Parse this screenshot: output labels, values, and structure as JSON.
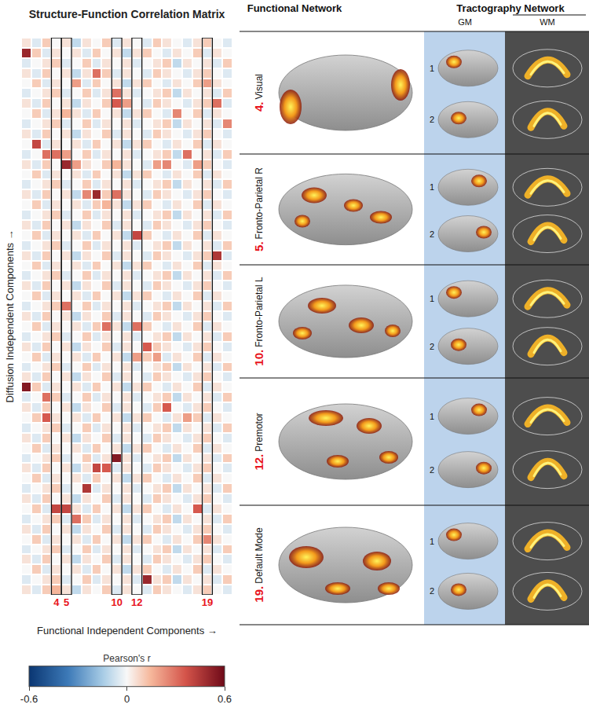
{
  "chart_data": {
    "type": "heatmap",
    "title": "Structure-Function Correlation Matrix",
    "x_label": "Functional Independent Components →",
    "y_label": "Diffusion Independent Components →",
    "tick_labels": "x",
    "categories": [
      null,
      null,
      null,
      "4",
      "5",
      null,
      null,
      null,
      null,
      "10",
      null,
      "12",
      null,
      null,
      null,
      null,
      null,
      null,
      "19",
      null,
      null
    ],
    "highlighted_columns": [
      "4",
      "5",
      "10",
      "12",
      "19"
    ],
    "colorbar": {
      "title": "Pearson's r",
      "range": [
        -0.6,
        0.6
      ],
      "ticks": [
        -0.6,
        0,
        0.6
      ]
    },
    "cells": [
      [
        0.05,
        -0.05,
        0.1,
        0,
        0.05,
        -0.1,
        0.05,
        0,
        0.1,
        -0.05,
        0.05,
        0,
        -0.05,
        0.1,
        0.05,
        0,
        -0.05,
        0.05,
        0.1,
        0,
        -0.05
      ],
      [
        0.5,
        0.1,
        -0.05,
        0.05,
        0,
        0.05,
        -0.05,
        0.1,
        0,
        0.05,
        -0.1,
        0.05,
        0.1,
        0,
        -0.05,
        0.05,
        0,
        0.1,
        -0.05,
        0.05,
        0
      ],
      [
        -0.05,
        0,
        0.05,
        0.1,
        -0.05,
        0,
        0.1,
        -0.05,
        0.05,
        0,
        0.05,
        -0.05,
        0,
        0.05,
        0.1,
        -0.1,
        0.05,
        0,
        0.05,
        -0.05,
        0.1
      ],
      [
        0.05,
        -0.05,
        0.1,
        0,
        0.05,
        -0.1,
        0.05,
        0.3,
        0.1,
        -0.05,
        0.05,
        0,
        -0.05,
        0.1,
        0.05,
        0,
        -0.05,
        0.05,
        0.1,
        0,
        -0.05
      ],
      [
        0,
        0.1,
        -0.05,
        0.05,
        0,
        0.2,
        -0.05,
        0.1,
        0,
        0.05,
        -0.1,
        0.05,
        0.1,
        0,
        -0.05,
        0.05,
        0,
        0.1,
        0.2,
        0.05,
        0
      ],
      [
        -0.05,
        0,
        0.05,
        0.1,
        -0.05,
        0,
        0.1,
        -0.05,
        0.05,
        0.3,
        0.05,
        -0.05,
        0,
        0.05,
        0.1,
        -0.1,
        0.05,
        0,
        0.05,
        -0.05,
        0.1
      ],
      [
        0.05,
        -0.05,
        0.1,
        0,
        0.05,
        -0.1,
        0.05,
        0,
        0.1,
        0.35,
        0.2,
        0,
        -0.05,
        0.1,
        0.05,
        0,
        -0.05,
        0.05,
        0.1,
        0.3,
        -0.05
      ],
      [
        0,
        0.1,
        -0.05,
        0.05,
        0.15,
        0.05,
        -0.05,
        0.1,
        0,
        0.05,
        -0.1,
        0.05,
        0.1,
        0,
        -0.05,
        0.25,
        0,
        0.1,
        -0.05,
        0.05,
        0
      ],
      [
        -0.05,
        0,
        0.05,
        0.1,
        -0.05,
        0,
        0.1,
        -0.05,
        0.05,
        0,
        0.05,
        -0.05,
        0,
        0.05,
        0.1,
        -0.1,
        0.05,
        0,
        0.05,
        -0.05,
        0.25
      ],
      [
        0.05,
        -0.05,
        0.1,
        0,
        0.05,
        -0.1,
        0.05,
        0,
        0.1,
        -0.05,
        0.05,
        0,
        -0.05,
        0.1,
        0.05,
        0,
        -0.05,
        0.05,
        0.1,
        0,
        -0.05
      ],
      [
        0,
        0.4,
        -0.05,
        0.05,
        0,
        0.05,
        -0.05,
        0.1,
        0,
        0.05,
        -0.1,
        0.05,
        0.1,
        0,
        -0.05,
        0.05,
        0,
        0.1,
        -0.05,
        0.05,
        0
      ],
      [
        -0.05,
        0,
        0.3,
        0.3,
        0.2,
        0,
        0.1,
        -0.05,
        0.05,
        0,
        0.05,
        -0.05,
        0,
        0.05,
        0.1,
        -0.1,
        0.3,
        0,
        0.05,
        -0.05,
        0.1
      ],
      [
        0.05,
        -0.05,
        0.1,
        0,
        0.5,
        0.2,
        0.05,
        0,
        0.1,
        0.15,
        0.05,
        0,
        -0.05,
        0.2,
        0.25,
        0,
        -0.05,
        0.2,
        0.1,
        0,
        -0.05
      ],
      [
        0,
        0.1,
        -0.05,
        0.05,
        0,
        0.05,
        -0.05,
        0.1,
        0,
        0.05,
        -0.1,
        0.05,
        0.1,
        0,
        -0.05,
        0.05,
        0,
        0.1,
        -0.05,
        0.05,
        0
      ],
      [
        -0.05,
        0,
        0.05,
        0.1,
        -0.05,
        0,
        0.1,
        -0.05,
        0.05,
        0,
        0.05,
        -0.05,
        0,
        0.05,
        0.1,
        -0.1,
        0.05,
        0,
        0.05,
        -0.05,
        0.1
      ],
      [
        0.05,
        -0.05,
        0.1,
        0,
        0.05,
        -0.1,
        0.25,
        0.5,
        0.1,
        0.3,
        0.05,
        0,
        -0.05,
        0.1,
        0.05,
        0,
        -0.05,
        0.05,
        0.1,
        0,
        -0.05
      ],
      [
        0,
        0.1,
        -0.05,
        0.05,
        0,
        0.05,
        -0.05,
        0.1,
        0.15,
        0.05,
        -0.1,
        0.05,
        0.1,
        0,
        -0.05,
        0.05,
        0,
        0.1,
        -0.05,
        0.05,
        0
      ],
      [
        -0.05,
        0,
        0.05,
        0.1,
        -0.05,
        0,
        0.1,
        -0.05,
        0.05,
        0,
        0.05,
        -0.05,
        0,
        0.05,
        0.1,
        -0.1,
        0.05,
        0,
        0.05,
        -0.05,
        0.1
      ],
      [
        0.05,
        -0.05,
        0.1,
        0,
        0.05,
        -0.1,
        0.05,
        0,
        0.1,
        -0.05,
        0.05,
        0,
        -0.05,
        0.1,
        0.05,
        0,
        -0.05,
        0.05,
        0.1,
        0,
        -0.05
      ],
      [
        0,
        0.1,
        -0.05,
        0.05,
        0,
        0.05,
        -0.05,
        0.1,
        0,
        0.05,
        -0.1,
        0.4,
        0.1,
        0,
        -0.05,
        0.05,
        0,
        0.1,
        -0.05,
        0.05,
        0
      ],
      [
        -0.05,
        0,
        0.05,
        0.1,
        -0.05,
        0,
        0.1,
        -0.05,
        0.05,
        0,
        0.05,
        -0.05,
        0,
        0.05,
        0.1,
        -0.1,
        0.05,
        0,
        0.05,
        -0.05,
        0.1
      ],
      [
        0.05,
        -0.05,
        0.1,
        0,
        0.05,
        -0.1,
        0.05,
        0,
        0.1,
        -0.05,
        0.05,
        0,
        -0.05,
        0.1,
        0.05,
        0,
        -0.05,
        0.05,
        0.1,
        0.45,
        -0.05
      ],
      [
        0,
        0.1,
        -0.05,
        0.05,
        0,
        0.05,
        -0.05,
        0.1,
        0,
        0.05,
        -0.1,
        0.05,
        0.1,
        0,
        -0.05,
        0.05,
        0,
        0.1,
        -0.05,
        0.05,
        0
      ],
      [
        -0.05,
        0,
        0.05,
        0.1,
        -0.05,
        0,
        0.1,
        -0.05,
        0.05,
        0,
        0.05,
        -0.05,
        0,
        0.05,
        0.1,
        -0.1,
        0.05,
        0,
        0.05,
        -0.05,
        0.1
      ],
      [
        0.05,
        -0.05,
        0.1,
        0,
        0.05,
        -0.1,
        0.05,
        0,
        0.1,
        -0.05,
        0.05,
        0,
        -0.05,
        0.1,
        0.05,
        0,
        -0.05,
        0.05,
        0.1,
        0,
        -0.05
      ],
      [
        0,
        0.1,
        -0.05,
        0.05,
        0,
        0.05,
        -0.05,
        0.1,
        0,
        0.05,
        -0.1,
        0.05,
        0.1,
        0,
        -0.05,
        0.05,
        0,
        0.1,
        -0.05,
        0.05,
        0
      ],
      [
        -0.05,
        0,
        0.05,
        0.1,
        0.3,
        0,
        0.1,
        -0.05,
        0.05,
        0,
        0.05,
        -0.05,
        0,
        0.05,
        0.1,
        -0.1,
        0.05,
        0,
        0.05,
        -0.05,
        0.1
      ],
      [
        0.05,
        -0.05,
        0.1,
        0,
        0.05,
        -0.1,
        0.05,
        0,
        0.1,
        -0.05,
        0.05,
        0,
        -0.05,
        0.1,
        0.05,
        0,
        -0.05,
        0.05,
        0.1,
        0,
        -0.05
      ],
      [
        0,
        0.1,
        -0.05,
        0.05,
        0,
        0.05,
        -0.05,
        0.1,
        0.3,
        0.05,
        -0.1,
        0.3,
        0.1,
        0,
        -0.05,
        0.05,
        0,
        0.1,
        -0.05,
        0.05,
        0
      ],
      [
        -0.05,
        0,
        0.05,
        0.1,
        -0.05,
        0,
        0.1,
        -0.05,
        0.05,
        0,
        0.05,
        -0.05,
        0,
        0.05,
        0.1,
        -0.1,
        0.05,
        0,
        0.05,
        -0.05,
        0.1
      ],
      [
        0.05,
        -0.05,
        0.1,
        0,
        0.05,
        -0.1,
        0.05,
        0,
        0.1,
        -0.05,
        0.05,
        0,
        0.35,
        0.1,
        0.05,
        0,
        -0.05,
        0.05,
        0.1,
        0,
        -0.05
      ],
      [
        0,
        0.1,
        -0.05,
        0.05,
        0,
        0.05,
        -0.05,
        0.1,
        0,
        0.05,
        -0.1,
        0.2,
        0.1,
        0.2,
        -0.05,
        0.05,
        0,
        0.1,
        -0.05,
        0.05,
        0
      ],
      [
        -0.05,
        0,
        0.05,
        0.1,
        -0.05,
        0,
        0.1,
        -0.05,
        0.05,
        0,
        0.05,
        -0.05,
        0,
        0.05,
        0.1,
        -0.1,
        0.05,
        0,
        0.05,
        -0.05,
        0.1
      ],
      [
        0.05,
        -0.05,
        0.1,
        0,
        0.05,
        -0.1,
        0.05,
        0,
        0.1,
        -0.05,
        0.05,
        0,
        -0.05,
        0.1,
        0.05,
        0,
        -0.05,
        0.05,
        0.1,
        0,
        -0.05
      ],
      [
        0.55,
        0.1,
        -0.05,
        0.05,
        0,
        0.05,
        -0.05,
        0.1,
        0,
        0.05,
        -0.1,
        0.05,
        0.1,
        0,
        -0.05,
        0.05,
        0,
        0.1,
        -0.05,
        0.05,
        0
      ],
      [
        -0.05,
        0,
        0.3,
        0.1,
        -0.05,
        0,
        0.1,
        -0.05,
        0.05,
        0,
        0.05,
        -0.05,
        0,
        0.05,
        0.1,
        -0.1,
        0.05,
        0,
        0.05,
        -0.05,
        0.1
      ],
      [
        0.05,
        -0.05,
        0.1,
        0,
        0.05,
        -0.1,
        0.05,
        0,
        0.1,
        -0.05,
        0.05,
        0,
        -0.05,
        0.1,
        0.35,
        0,
        -0.05,
        0.05,
        0.1,
        0,
        -0.05
      ],
      [
        0,
        0.1,
        0.35,
        0.05,
        0,
        0.05,
        -0.05,
        0.1,
        0,
        0.05,
        -0.1,
        0.05,
        0.1,
        0,
        -0.05,
        0.05,
        0.2,
        0.1,
        -0.05,
        0.05,
        0
      ],
      [
        -0.05,
        0,
        0.05,
        0.1,
        -0.05,
        0,
        0.1,
        -0.05,
        0.05,
        0,
        0.05,
        -0.05,
        0,
        0.05,
        0.1,
        -0.1,
        0.05,
        0,
        0.05,
        -0.05,
        0.1
      ],
      [
        0.05,
        -0.05,
        0.1,
        0,
        0.05,
        -0.1,
        0.05,
        0,
        0.1,
        -0.05,
        0.05,
        0,
        -0.05,
        0.1,
        0.05,
        0,
        -0.05,
        0.05,
        0.1,
        0,
        -0.05
      ],
      [
        0,
        0.1,
        -0.05,
        0.05,
        0,
        0.05,
        -0.05,
        0.1,
        0,
        0.05,
        -0.1,
        0.05,
        0.1,
        0,
        -0.05,
        0.05,
        0,
        0.1,
        -0.05,
        0.05,
        0
      ],
      [
        -0.05,
        0,
        0.05,
        0.1,
        -0.05,
        0,
        0.1,
        -0.05,
        0.05,
        0.55,
        0.05,
        -0.05,
        0,
        0.05,
        0.1,
        -0.1,
        0.05,
        0,
        0.05,
        -0.05,
        0.1
      ],
      [
        0.05,
        -0.05,
        0.1,
        0,
        0.05,
        -0.1,
        0.05,
        0.4,
        0.35,
        -0.05,
        0.05,
        0,
        -0.05,
        0.1,
        0.05,
        0,
        -0.05,
        0.05,
        0.1,
        0,
        -0.05
      ],
      [
        0,
        0.1,
        -0.05,
        0.05,
        0,
        0.05,
        -0.05,
        0.1,
        0,
        0.05,
        -0.1,
        0.05,
        0.1,
        0,
        -0.05,
        0.05,
        0,
        0.1,
        -0.05,
        0.05,
        0
      ],
      [
        -0.05,
        0,
        0.05,
        0.1,
        -0.05,
        0,
        0.45,
        -0.05,
        0.05,
        0,
        0.05,
        -0.05,
        0,
        0.05,
        0.1,
        -0.1,
        0.05,
        0,
        0.05,
        -0.05,
        0.1
      ],
      [
        0.05,
        -0.05,
        0.1,
        0,
        0.05,
        -0.1,
        0.05,
        0,
        0.1,
        -0.05,
        0.05,
        0,
        -0.05,
        0.1,
        0.05,
        0,
        -0.05,
        0.05,
        0.1,
        0,
        -0.05
      ],
      [
        0,
        0.1,
        -0.05,
        0.4,
        0.4,
        0.05,
        -0.05,
        0.1,
        0,
        0.05,
        -0.1,
        0.05,
        0.1,
        0,
        -0.05,
        0.05,
        0,
        0.35,
        -0.05,
        0.05,
        0
      ],
      [
        -0.05,
        0,
        0.05,
        0.1,
        -0.05,
        0.3,
        0.1,
        -0.05,
        0.05,
        0,
        0.05,
        -0.05,
        0,
        0.05,
        0.1,
        -0.1,
        0.05,
        0,
        0.05,
        -0.05,
        0.1
      ],
      [
        0.05,
        -0.05,
        0.1,
        0,
        0.05,
        -0.1,
        0.05,
        0,
        0.1,
        -0.05,
        0.05,
        0,
        -0.05,
        0.1,
        0.05,
        0,
        -0.05,
        0.05,
        0.1,
        0,
        -0.05
      ],
      [
        0,
        0.1,
        -0.05,
        0.05,
        0,
        0.05,
        -0.05,
        0.1,
        0,
        0.05,
        -0.1,
        0.05,
        0.1,
        0,
        -0.05,
        0.05,
        0,
        0.1,
        0.25,
        0.05,
        0
      ],
      [
        -0.05,
        0,
        0.05,
        0.1,
        -0.05,
        0,
        0.1,
        -0.05,
        0.05,
        0,
        0.05,
        -0.05,
        0,
        0.05,
        0.1,
        -0.1,
        0.05,
        0,
        0.05,
        -0.05,
        0.1
      ],
      [
        0.05,
        -0.05,
        0.1,
        0,
        0.05,
        -0.1,
        0.05,
        0,
        0.1,
        -0.05,
        0.05,
        0,
        -0.05,
        0.1,
        0.05,
        0,
        -0.05,
        0.05,
        0.1,
        0,
        -0.05
      ],
      [
        0,
        0.1,
        -0.05,
        0.05,
        0,
        0.05,
        -0.05,
        0.1,
        0,
        0.05,
        -0.1,
        0.05,
        0.1,
        0,
        -0.05,
        0.05,
        0,
        0.1,
        -0.05,
        0.05,
        0
      ],
      [
        -0.05,
        0,
        0.05,
        0.1,
        -0.05,
        0,
        0.1,
        -0.05,
        0.05,
        0,
        0.05,
        -0.05,
        0.5,
        0.05,
        0.1,
        -0.1,
        0.05,
        0,
        0.05,
        -0.05,
        0.1
      ],
      [
        0.05,
        -0.05,
        0.1,
        0.15,
        0.05,
        -0.1,
        0.05,
        0,
        0.1,
        -0.05,
        0.05,
        0,
        -0.05,
        0.1,
        0.05,
        0,
        -0.05,
        0.05,
        0.1,
        0,
        -0.05
      ]
    ]
  },
  "networks_panel": {
    "functional_title": "Functional Network",
    "tractography_title": "Tractography Network",
    "gm_label": "GM",
    "wm_label": "WM",
    "views": [
      "1",
      "2"
    ],
    "networks": [
      {
        "number": "4.",
        "name": "Visual"
      },
      {
        "number": "5.",
        "name": "Fronto-Parietal R"
      },
      {
        "number": "10.",
        "name": "Fronto-Parietal L"
      },
      {
        "number": "12.",
        "name": "Premotor"
      },
      {
        "number": "19.",
        "name": "Default Mode"
      }
    ]
  }
}
